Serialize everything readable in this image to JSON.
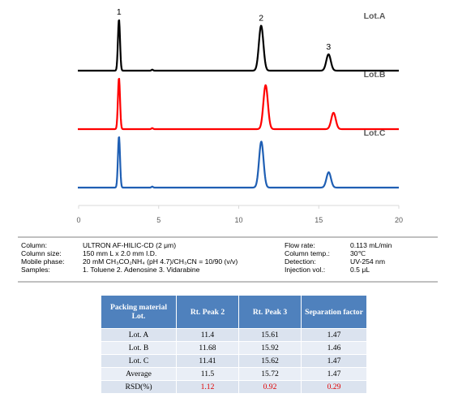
{
  "chart_data": {
    "type": "line",
    "x_axis": {
      "min": 0,
      "max": 20,
      "ticks": [
        0,
        5,
        10,
        15,
        20
      ],
      "grid": false
    },
    "series": [
      {
        "name": "Lot.A",
        "color": "#000000",
        "peaks": [
          {
            "label": "1",
            "rt": 2.52,
            "height": 1.0,
            "width": 0.065
          },
          {
            "label": "2",
            "rt": 11.4,
            "height": 0.88,
            "width": 0.14
          },
          {
            "label": "3",
            "rt": 15.61,
            "height": 0.32,
            "width": 0.14
          },
          {
            "label": "",
            "rt": 4.6,
            "height": 0.02,
            "width": 0.05
          }
        ]
      },
      {
        "name": "Lot.B",
        "color": "#ff0000",
        "peaks": [
          {
            "label": "",
            "rt": 2.52,
            "height": 1.0,
            "width": 0.065
          },
          {
            "label": "",
            "rt": 11.68,
            "height": 0.86,
            "width": 0.14
          },
          {
            "label": "",
            "rt": 15.92,
            "height": 0.32,
            "width": 0.14
          },
          {
            "label": "",
            "rt": 4.6,
            "height": 0.02,
            "width": 0.05
          }
        ]
      },
      {
        "name": "Lot.C",
        "color": "#1f5fb4",
        "peaks": [
          {
            "label": "",
            "rt": 2.52,
            "height": 1.0,
            "width": 0.065
          },
          {
            "label": "",
            "rt": 11.41,
            "height": 0.9,
            "width": 0.14
          },
          {
            "label": "",
            "rt": 15.62,
            "height": 0.3,
            "width": 0.14
          },
          {
            "label": "",
            "rt": 4.6,
            "height": 0.02,
            "width": 0.05
          }
        ]
      }
    ]
  },
  "conditions": {
    "left": [
      {
        "label": "Column:",
        "value": "ULTRON AF-HILIC-CD (2 μm)"
      },
      {
        "label": "Column size:",
        "value": "150 mm L x 2.0 mm I.D."
      },
      {
        "label": "Mobile phase:",
        "value": "20 mM CH₃CO₂NH₄ (pH 4.7)/CH₃CN = 10/90 (v/v)"
      },
      {
        "label": "Samples:",
        "value": "1. Toluene  2. Adenosine  3. Vidarabine"
      }
    ],
    "right": [
      {
        "label": "Flow rate:",
        "value": "0.113 mL/min"
      },
      {
        "label": "Column temp.:",
        "value": "30℃"
      },
      {
        "label": "Detection:",
        "value": "UV-254 nm"
      },
      {
        "label": "Injection vol.:",
        "value": "0.5 μL"
      }
    ]
  },
  "table": {
    "headers": [
      "Packing material Lot.",
      "Rt. Peak 2",
      "Rt. Peak 3",
      "Separation factor"
    ],
    "rows": [
      [
        "Lot. A",
        "11.4",
        "15.61",
        "1.47"
      ],
      [
        "Lot. B",
        "11.68",
        "15.92",
        "1.46"
      ],
      [
        "Lot. C",
        "11.41",
        "15.62",
        "1.47"
      ],
      [
        "Average",
        "11.5",
        "15.72",
        "1.47"
      ],
      [
        "RSD(%)",
        "1.12",
        "0.92",
        "0.29"
      ]
    ],
    "highlight_color": "#e00000"
  }
}
